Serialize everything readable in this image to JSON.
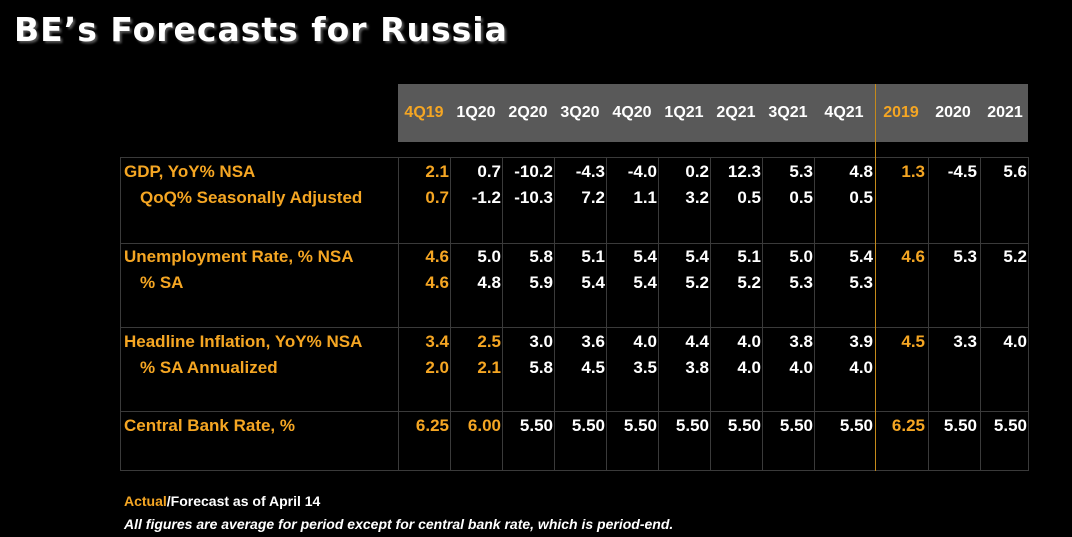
{
  "title": "BE’s Forecasts for Russia",
  "columns": [
    "4Q19",
    "1Q20",
    "2Q20",
    "3Q20",
    "4Q20",
    "1Q21",
    "2Q21",
    "3Q21",
    "4Q21",
    "2019",
    "2020",
    "2021"
  ],
  "colors": {
    "accent": "#f5a623",
    "text": "#ffffff",
    "header_bg": "#595959",
    "background": "#000000"
  },
  "rows": [
    {
      "label": "GDP, YoY% NSA",
      "values": [
        "2.1",
        "0.7",
        "-10.2",
        "-4.3",
        "-4.0",
        "0.2",
        "12.3",
        "5.3",
        "4.8",
        "1.3",
        "-4.5",
        "5.6"
      ]
    },
    {
      "label": "QoQ% Seasonally Adjusted",
      "values": [
        "0.7",
        "-1.2",
        "-10.3",
        "7.2",
        "1.1",
        "3.2",
        "0.5",
        "0.5",
        "0.5",
        "",
        "",
        ""
      ]
    },
    {
      "label": "Unemployment Rate, % NSA",
      "values": [
        "4.6",
        "5.0",
        "5.8",
        "5.1",
        "5.4",
        "5.4",
        "5.1",
        "5.0",
        "5.4",
        "4.6",
        "5.3",
        "5.2"
      ]
    },
    {
      "label": "% SA",
      "values": [
        "4.6",
        "4.8",
        "5.9",
        "5.4",
        "5.4",
        "5.2",
        "5.2",
        "5.3",
        "5.3",
        "",
        "",
        ""
      ]
    },
    {
      "label": "Headline Inflation, YoY% NSA",
      "values": [
        "3.4",
        "2.5",
        "3.0",
        "3.6",
        "4.0",
        "4.4",
        "4.0",
        "3.8",
        "3.9",
        "4.5",
        "3.3",
        "4.0"
      ]
    },
    {
      "label": "% SA Annualized",
      "values": [
        "2.0",
        "2.1",
        "5.8",
        "4.5",
        "3.5",
        "3.8",
        "4.0",
        "4.0",
        "4.0",
        "",
        "",
        ""
      ]
    },
    {
      "label": "Central Bank Rate, %",
      "values": [
        "6.25",
        "6.00",
        "5.50",
        "5.50",
        "5.50",
        "5.50",
        "5.50",
        "5.50",
        "5.50",
        "6.25",
        "5.50",
        "5.50"
      ]
    }
  ],
  "footer": {
    "actual": "Actual",
    "forecast": "/Forecast as of April 14",
    "note": "All figures are average for period except for central bank rate, which is period-end."
  }
}
